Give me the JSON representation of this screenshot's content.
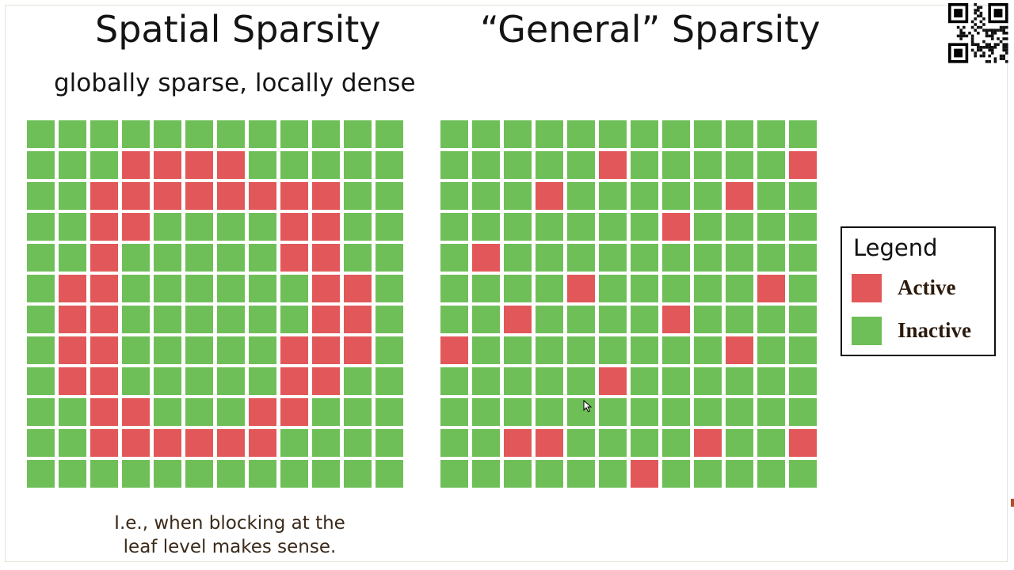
{
  "titles": {
    "left": "Spatial Sparsity",
    "right": "“General” Sparsity",
    "left_subtitle": "globally sparse, locally dense"
  },
  "caption": {
    "line1": "I.e., when blocking at the",
    "line2": "leaf level makes sense."
  },
  "legend": {
    "title": "Legend",
    "items": [
      {
        "label": "Active",
        "color": "#e2585a"
      },
      {
        "label": "Inactive",
        "color": "#6fbf58"
      }
    ]
  },
  "colors": {
    "active": "#e2585a",
    "inactive": "#6fbf58",
    "grid_gap": "#ffffff"
  },
  "grids": {
    "spatial": [
      [
        0,
        0,
        0,
        0,
        0,
        0,
        0,
        0,
        0,
        0,
        0,
        0
      ],
      [
        0,
        0,
        0,
        1,
        1,
        1,
        1,
        0,
        0,
        0,
        0,
        0
      ],
      [
        0,
        0,
        1,
        1,
        1,
        1,
        1,
        1,
        1,
        1,
        0,
        0
      ],
      [
        0,
        0,
        1,
        1,
        0,
        0,
        0,
        0,
        1,
        1,
        0,
        0
      ],
      [
        0,
        0,
        1,
        0,
        0,
        0,
        0,
        0,
        1,
        1,
        0,
        0
      ],
      [
        0,
        1,
        1,
        0,
        0,
        0,
        0,
        0,
        0,
        1,
        1,
        0
      ],
      [
        0,
        1,
        1,
        0,
        0,
        0,
        0,
        0,
        0,
        1,
        1,
        0
      ],
      [
        0,
        1,
        1,
        0,
        0,
        0,
        0,
        0,
        1,
        1,
        1,
        0
      ],
      [
        0,
        1,
        1,
        0,
        0,
        0,
        0,
        0,
        1,
        1,
        0,
        0
      ],
      [
        0,
        0,
        1,
        1,
        0,
        0,
        0,
        1,
        1,
        0,
        0,
        0
      ],
      [
        0,
        0,
        1,
        1,
        1,
        1,
        1,
        1,
        0,
        0,
        0,
        0
      ],
      [
        0,
        0,
        0,
        0,
        0,
        0,
        0,
        0,
        0,
        0,
        0,
        0
      ]
    ],
    "general": [
      [
        0,
        0,
        0,
        0,
        0,
        0,
        0,
        0,
        0,
        0,
        0,
        0
      ],
      [
        0,
        0,
        0,
        0,
        0,
        1,
        0,
        0,
        0,
        0,
        0,
        1
      ],
      [
        0,
        0,
        0,
        1,
        0,
        0,
        0,
        0,
        0,
        1,
        0,
        0
      ],
      [
        0,
        0,
        0,
        0,
        0,
        0,
        0,
        1,
        0,
        0,
        0,
        0
      ],
      [
        0,
        1,
        0,
        0,
        0,
        0,
        0,
        0,
        0,
        0,
        0,
        0
      ],
      [
        0,
        0,
        0,
        0,
        1,
        0,
        0,
        0,
        0,
        0,
        1,
        0
      ],
      [
        0,
        0,
        1,
        0,
        0,
        0,
        0,
        1,
        0,
        0,
        0,
        0
      ],
      [
        1,
        0,
        0,
        0,
        0,
        0,
        0,
        0,
        0,
        1,
        0,
        0
      ],
      [
        0,
        0,
        0,
        0,
        0,
        1,
        0,
        0,
        0,
        0,
        0,
        0
      ],
      [
        0,
        0,
        0,
        0,
        0,
        0,
        0,
        0,
        0,
        0,
        0,
        0
      ],
      [
        0,
        0,
        1,
        1,
        0,
        0,
        0,
        0,
        1,
        0,
        0,
        1
      ],
      [
        0,
        0,
        0,
        0,
        0,
        0,
        1,
        0,
        0,
        0,
        0,
        0
      ]
    ]
  },
  "icons": {
    "qr": "qr-code-icon",
    "cursor": "mouse-cursor-icon"
  }
}
